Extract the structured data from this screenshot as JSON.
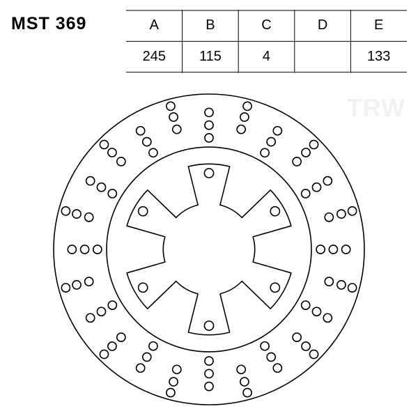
{
  "title": "MST 369",
  "logo_text": "TRW",
  "logo_color": "#f2f2f2",
  "table": {
    "columns": [
      "A",
      "B",
      "C",
      "D",
      "E"
    ],
    "values": [
      "245",
      "115",
      "4",
      "",
      "133"
    ],
    "fontsize_header": 20,
    "fontsize_value": 20,
    "line_color": "#000000",
    "line_width": 1
  },
  "disc": {
    "type": "technical-drawing",
    "stroke": "#000000",
    "stroke_width": 1.6,
    "background": "#ffffff",
    "outer_radius": 220,
    "band_outer": 220,
    "band_inner": 145,
    "inner_hub_radius": 90,
    "bolt_hole": {
      "count": 6,
      "circle_radius": 108,
      "hole_radius": 6.5
    },
    "perf_rows": [
      {
        "radius": 158,
        "count": 12,
        "offset_deg": 0,
        "hole_r": 6
      },
      {
        "radius": 176,
        "count": 12,
        "offset_deg": 15,
        "hole_r": 6
      },
      {
        "radius": 176,
        "count": 12,
        "offset_deg": 0,
        "hole_r": 6
      },
      {
        "radius": 194,
        "count": 12,
        "offset_deg": 15,
        "hole_r": 6
      },
      {
        "radius": 194,
        "count": 12,
        "offset_deg": 0,
        "hole_r": 6
      },
      {
        "radius": 210,
        "count": 12,
        "offset_deg": 15,
        "hole_r": 6
      }
    ],
    "svg_size": 462
  },
  "colors": {
    "background": "#ffffff",
    "text": "#000000"
  },
  "typography": {
    "title_fontsize": 25,
    "title_weight": 700,
    "table_fontsize": 20,
    "logo_fontsize": 36,
    "logo_weight": 800,
    "font_family": "Arial, Helvetica, sans-serif"
  }
}
